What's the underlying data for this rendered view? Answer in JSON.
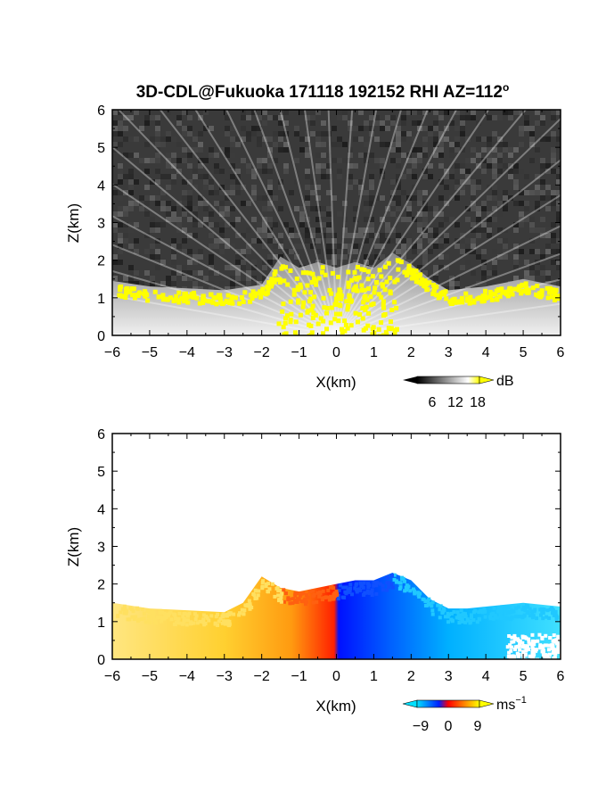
{
  "title": {
    "main": "3D-CDL@Fukuoka 171118 192152 RHI AZ=112",
    "degree_sup": "o"
  },
  "chart_data": [
    {
      "type": "heatmap",
      "panel": "top",
      "variable": "intensity",
      "xlabel": "X(km)",
      "ylabel": "Z(km)",
      "xlim": [
        -6,
        6
      ],
      "ylim": [
        0,
        6
      ],
      "xticks": [
        "−6",
        "−5",
        "−4",
        "−3",
        "−2",
        "−1",
        "0",
        "1",
        "2",
        "3",
        "4",
        "5",
        "6"
      ],
      "yticks": [
        "0",
        "1",
        "2",
        "3",
        "4",
        "5",
        "6"
      ],
      "colorbar": {
        "unit": "dB",
        "ticks": [
          "6",
          "12",
          "18"
        ],
        "tick_values": [
          6,
          12,
          18
        ],
        "range": [
          0,
          20
        ],
        "colors": [
          "#000000",
          "#ffffff",
          "#ffff00"
        ]
      },
      "echo_top_km": [
        [
          -6,
          1.45
        ],
        [
          -5,
          1.3
        ],
        [
          -4,
          1.25
        ],
        [
          -3,
          1.2
        ],
        [
          -2,
          1.35
        ],
        [
          -1.5,
          2.1
        ],
        [
          -1,
          1.8
        ],
        [
          -0.5,
          1.95
        ],
        [
          0,
          1.8
        ],
        [
          0.5,
          1.95
        ],
        [
          1,
          1.8
        ],
        [
          1.5,
          2.2
        ],
        [
          2,
          1.9
        ],
        [
          2.5,
          1.5
        ],
        [
          3,
          1.2
        ],
        [
          3.5,
          1.25
        ],
        [
          4,
          1.3
        ],
        [
          4.5,
          1.4
        ],
        [
          5,
          1.5
        ],
        [
          5.5,
          1.4
        ],
        [
          6,
          1.3
        ]
      ],
      "background": "#404040",
      "saturated_color": "#ffff00"
    },
    {
      "type": "heatmap",
      "panel": "bottom",
      "variable": "radial_velocity",
      "xlabel": "X(km)",
      "ylabel": "Z(km)",
      "xlim": [
        -6,
        6
      ],
      "ylim": [
        0,
        6
      ],
      "xticks": [
        "−6",
        "−5",
        "−4",
        "−3",
        "−2",
        "−1",
        "0",
        "1",
        "2",
        "3",
        "4",
        "5",
        "6"
      ],
      "yticks": [
        "0",
        "1",
        "2",
        "3",
        "4",
        "5",
        "6"
      ],
      "colorbar": {
        "unit": "ms",
        "unit_sup": "−1",
        "ticks": [
          "−9",
          "0",
          "9"
        ],
        "tick_values": [
          -9,
          0,
          9
        ],
        "range": [
          -12,
          12
        ],
        "colors": [
          "#00e0ff",
          "#0020ff",
          "#ff0000",
          "#ff8000",
          "#ffff00"
        ]
      },
      "echo_top_km": [
        [
          -6,
          1.5
        ],
        [
          -5,
          1.35
        ],
        [
          -4,
          1.3
        ],
        [
          -3,
          1.25
        ],
        [
          -2.5,
          1.5
        ],
        [
          -2,
          2.2
        ],
        [
          -1.5,
          1.9
        ],
        [
          -1,
          1.8
        ],
        [
          -0.5,
          1.9
        ],
        [
          0,
          2.0
        ],
        [
          0.5,
          2.1
        ],
        [
          1,
          2.1
        ],
        [
          1.5,
          2.3
        ],
        [
          2,
          2.1
        ],
        [
          2.5,
          1.6
        ],
        [
          3,
          1.35
        ],
        [
          3.5,
          1.35
        ],
        [
          4,
          1.4
        ],
        [
          4.5,
          1.45
        ],
        [
          5,
          1.5
        ],
        [
          5.5,
          1.45
        ],
        [
          6,
          1.4
        ]
      ],
      "velocity_left_of_origin": 9,
      "velocity_right_of_origin": -9
    }
  ]
}
